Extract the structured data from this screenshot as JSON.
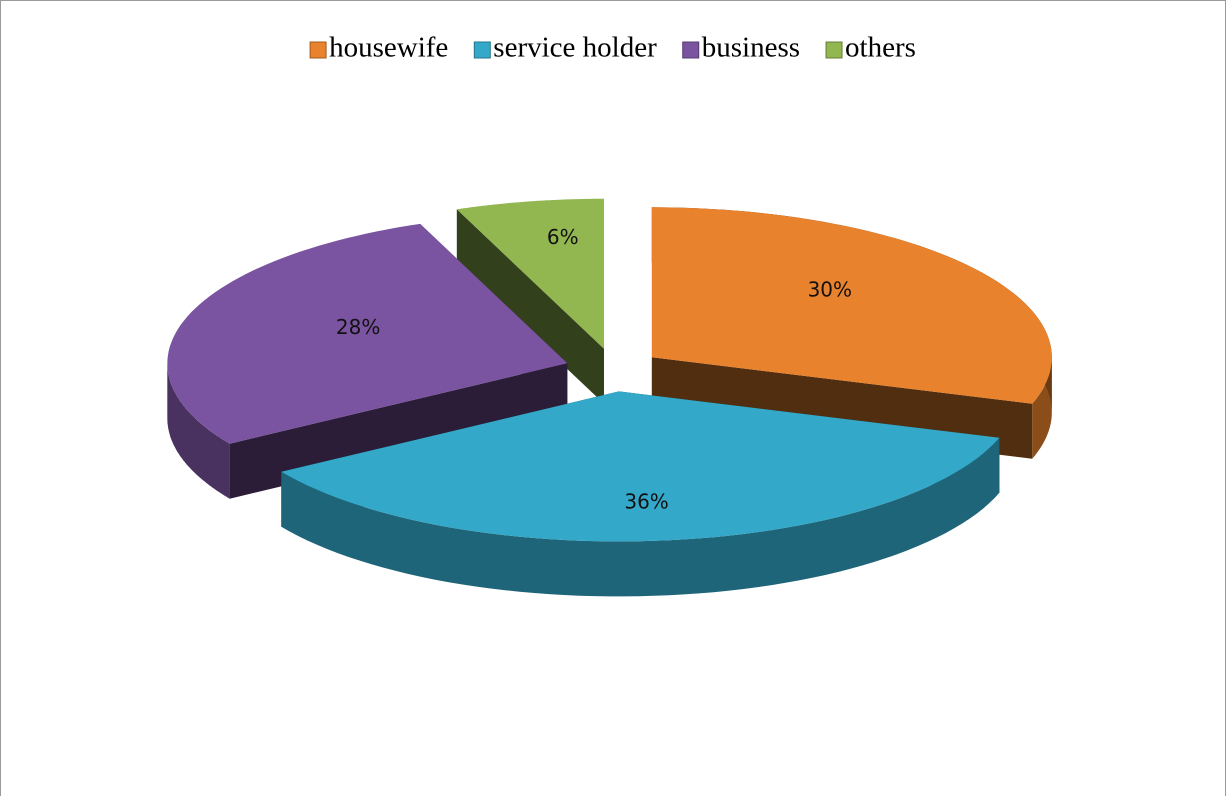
{
  "chart_data": {
    "type": "pie",
    "categories": [
      "housewife",
      "service holder",
      "business",
      "others"
    ],
    "values": [
      30,
      36,
      28,
      6
    ],
    "value_labels": [
      "30%",
      "36%",
      "28%",
      "6%"
    ],
    "colors": [
      "#e8822c",
      "#33a8c9",
      "#7a54a0",
      "#92b650"
    ],
    "legend": "top"
  }
}
